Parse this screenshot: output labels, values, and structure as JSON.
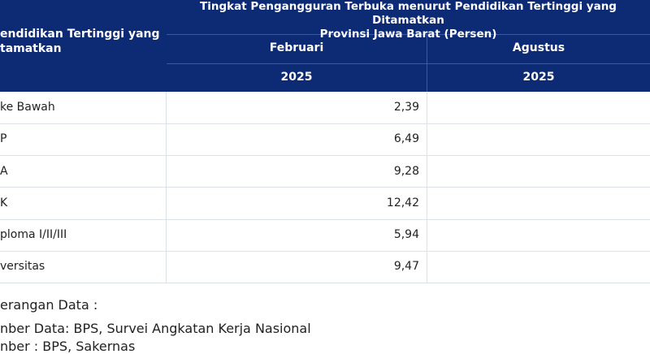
{
  "table": {
    "title_line1": "Tingkat Pengangguran Terbuka menurut Pendidikan Tertinggi yang Ditamatkan",
    "title_line2": "Provinsi Jawa Barat (Persen)",
    "row_header_line1": "endidikan Tertinggi yang",
    "row_header_line2": "tamatkan",
    "periods": [
      {
        "month": "Februari",
        "year": "2025"
      },
      {
        "month": "Agustus",
        "year": "2025"
      }
    ],
    "rows": [
      {
        "label": "ke Bawah",
        "feb": "2,39",
        "aug": ""
      },
      {
        "label": "P",
        "feb": "6,49",
        "aug": ""
      },
      {
        "label": "A",
        "feb": "9,28",
        "aug": ""
      },
      {
        "label": "K",
        "feb": "12,42",
        "aug": ""
      },
      {
        "label": "ploma I/II/III",
        "feb": "5,94",
        "aug": ""
      },
      {
        "label": "versitas",
        "feb": "9,47",
        "aug": ""
      }
    ]
  },
  "notes": {
    "heading": "erangan Data :",
    "source1": "nber Data: BPS, Survei Angkatan Kerja Nasional",
    "source2": "nber : BPS, Sakernas"
  },
  "colors": {
    "header_bg": "#0d2a75",
    "header_text": "#ffffff",
    "grid": "#dde1e8"
  }
}
